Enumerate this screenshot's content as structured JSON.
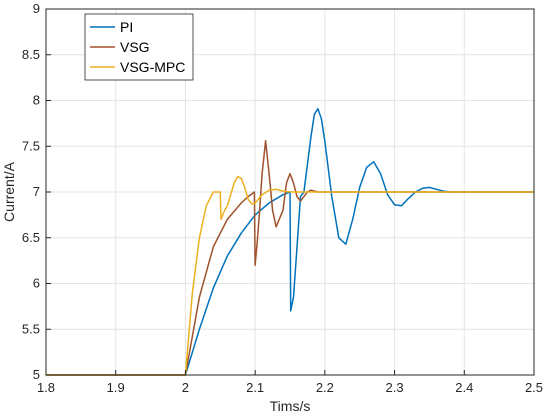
{
  "chart_data": {
    "type": "line",
    "xlabel": "Tims/s",
    "ylabel": "Current/A",
    "xlim": [
      1.8,
      2.5
    ],
    "ylim": [
      5,
      9
    ],
    "xticks": [
      "1.8",
      "1.9",
      "2",
      "2.1",
      "2.2",
      "2.3",
      "2.4",
      "2.5"
    ],
    "yticks": [
      "5",
      "5.5",
      "6",
      "6.5",
      "7",
      "7.5",
      "8",
      "8.5",
      "9"
    ],
    "grid": true,
    "legend_position": "top-left",
    "series": [
      {
        "name": "PI",
        "color": "#0072BD",
        "x": [
          1.8,
          2.0,
          2.02,
          2.04,
          2.06,
          2.08,
          2.1,
          2.12,
          2.14,
          2.15,
          2.151,
          2.155,
          2.16,
          2.165,
          2.17,
          2.175,
          2.18,
          2.185,
          2.19,
          2.195,
          2.2,
          2.21,
          2.22,
          2.23,
          2.24,
          2.25,
          2.26,
          2.27,
          2.28,
          2.29,
          2.3,
          2.31,
          2.32,
          2.33,
          2.34,
          2.35,
          2.36,
          2.37,
          2.38,
          2.5
        ],
        "y": [
          5.0,
          5.0,
          5.5,
          5.95,
          6.3,
          6.55,
          6.75,
          6.88,
          6.97,
          7.0,
          5.7,
          5.85,
          6.4,
          6.95,
          7.0,
          7.3,
          7.6,
          7.85,
          7.91,
          7.8,
          7.55,
          6.95,
          6.5,
          6.43,
          6.7,
          7.05,
          7.27,
          7.33,
          7.2,
          6.97,
          6.86,
          6.85,
          6.93,
          7.0,
          7.04,
          7.05,
          7.03,
          7.01,
          7.0,
          7.0
        ]
      },
      {
        "name": "VSG",
        "color": "#A0522D",
        "x": [
          1.8,
          2.0,
          2.02,
          2.04,
          2.06,
          2.08,
          2.09,
          2.099,
          2.1,
          2.103,
          2.106,
          2.11,
          2.115,
          2.12,
          2.125,
          2.13,
          2.14,
          2.145,
          2.15,
          2.155,
          2.16,
          2.165,
          2.17,
          2.175,
          2.18,
          2.19,
          2.5
        ],
        "y": [
          5.0,
          5.0,
          5.85,
          6.4,
          6.7,
          6.88,
          6.95,
          7.0,
          6.2,
          6.45,
          6.75,
          7.2,
          7.56,
          7.2,
          6.8,
          6.62,
          6.8,
          7.1,
          7.2,
          7.1,
          6.95,
          6.9,
          6.95,
          7.0,
          7.02,
          7.0,
          7.0
        ]
      },
      {
        "name": "VSG-MPC",
        "color": "#EDB120",
        "x": [
          1.8,
          2.0,
          2.01,
          2.02,
          2.03,
          2.04,
          2.05,
          2.051,
          2.055,
          2.06,
          2.065,
          2.07,
          2.075,
          2.08,
          2.085,
          2.09,
          2.095,
          2.1,
          2.11,
          2.12,
          2.13,
          2.14,
          2.15,
          2.16,
          2.5
        ],
        "y": [
          5.0,
          5.0,
          5.9,
          6.5,
          6.85,
          7.0,
          7.0,
          6.7,
          6.78,
          6.85,
          6.97,
          7.1,
          7.17,
          7.15,
          7.05,
          6.92,
          6.87,
          6.88,
          6.97,
          7.02,
          7.03,
          7.01,
          7.0,
          7.0,
          7.0
        ]
      }
    ]
  }
}
